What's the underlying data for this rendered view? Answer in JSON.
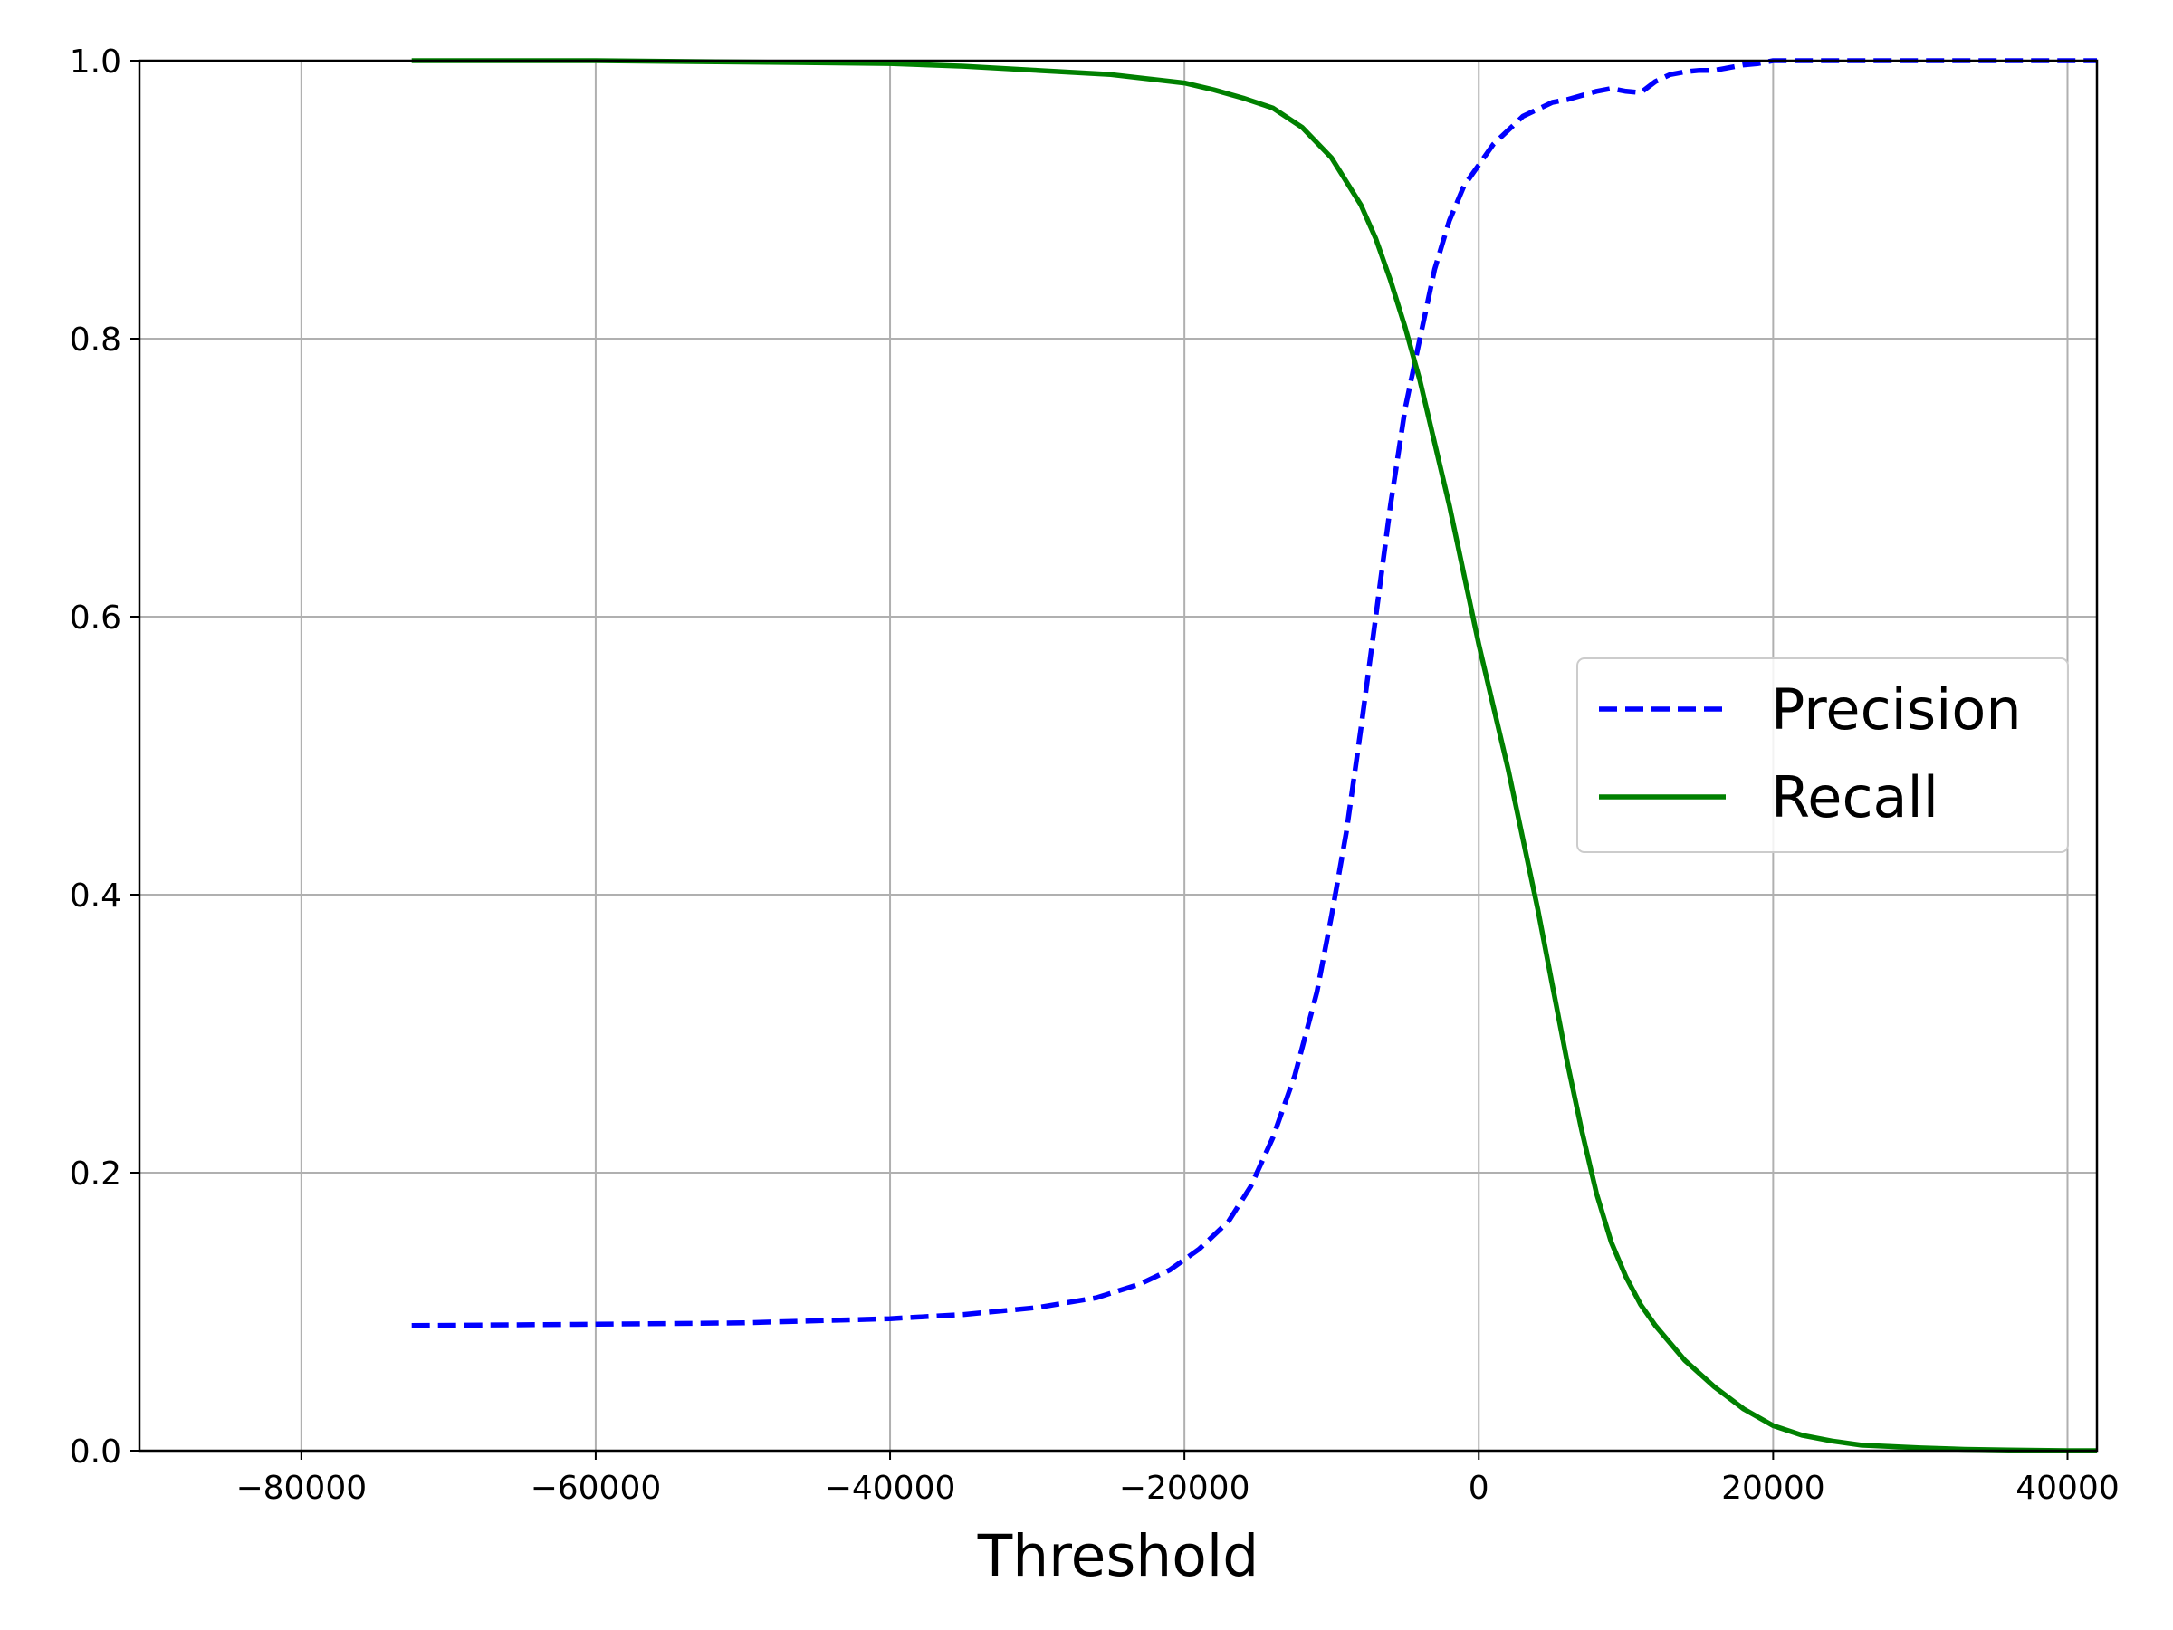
{
  "chart_data": {
    "type": "line",
    "title": "",
    "xlabel": "Threshold",
    "ylabel": "",
    "xlim": [
      -91000,
      42000
    ],
    "ylim": [
      0,
      1
    ],
    "xticks": [
      -80000,
      -60000,
      -40000,
      -20000,
      0,
      20000,
      40000
    ],
    "xtick_labels": [
      "−80000",
      "−60000",
      "−40000",
      "−20000",
      "0",
      "20000",
      "40000"
    ],
    "yticks": [
      0,
      0.2,
      0.4,
      0.6,
      0.8,
      1.0
    ],
    "ytick_labels": [
      "0.0",
      "0.2",
      "0.4",
      "0.6",
      "0.8",
      "1.0"
    ],
    "grid": true,
    "legend_position": "center-right",
    "series": [
      {
        "name": "Precision",
        "style": "dashed",
        "color": "#0000ff",
        "x": [
          -72500,
          -60000,
          -50000,
          -40000,
          -35000,
          -30000,
          -26000,
          -23000,
          -21000,
          -19000,
          -17000,
          -15500,
          -14000,
          -12500,
          -11000,
          -10000,
          -9000,
          -8000,
          -7000,
          -6000,
          -5000,
          -4000,
          -3000,
          -2000,
          -1000,
          0,
          1000,
          2000,
          3000,
          4000,
          5000,
          6000,
          7000,
          8000,
          9000,
          10000,
          11000,
          12000,
          13000,
          14000,
          15000,
          16000,
          17000,
          18000,
          19000,
          20000,
          25000,
          30000,
          35000,
          40000,
          42000
        ],
        "y": [
          0.09,
          0.091,
          0.092,
          0.095,
          0.098,
          0.103,
          0.11,
          0.12,
          0.13,
          0.145,
          0.165,
          0.19,
          0.225,
          0.27,
          0.33,
          0.385,
          0.445,
          0.52,
          0.6,
          0.68,
          0.75,
          0.8,
          0.85,
          0.885,
          0.91,
          0.925,
          0.94,
          0.95,
          0.96,
          0.965,
          0.97,
          0.972,
          0.975,
          0.978,
          0.98,
          0.978,
          0.977,
          0.985,
          0.99,
          0.992,
          0.993,
          0.993,
          0.995,
          0.997,
          0.998,
          1.0,
          1.0,
          1.0,
          1.0,
          1.0,
          1.0
        ]
      },
      {
        "name": "Recall",
        "style": "solid",
        "color": "#008000",
        "x": [
          -72500,
          -60000,
          -50000,
          -40000,
          -35000,
          -30000,
          -25000,
          -20000,
          -18000,
          -16000,
          -14000,
          -12000,
          -10000,
          -8000,
          -7000,
          -6000,
          -5000,
          -4000,
          -3000,
          -2000,
          -1000,
          0,
          1000,
          2000,
          3000,
          4000,
          5000,
          6000,
          7000,
          8000,
          9000,
          10000,
          11000,
          12000,
          14000,
          16000,
          18000,
          20000,
          22000,
          24000,
          26000,
          28000,
          30000,
          33000,
          36000,
          40000,
          42000
        ],
        "y": [
          1.0,
          1.0,
          0.999,
          0.998,
          0.996,
          0.993,
          0.99,
          0.984,
          0.979,
          0.973,
          0.966,
          0.952,
          0.93,
          0.896,
          0.872,
          0.842,
          0.808,
          0.77,
          0.725,
          0.68,
          0.63,
          0.58,
          0.535,
          0.49,
          0.44,
          0.39,
          0.335,
          0.28,
          0.23,
          0.185,
          0.15,
          0.125,
          0.105,
          0.09,
          0.065,
          0.046,
          0.03,
          0.018,
          0.011,
          0.007,
          0.004,
          0.003,
          0.002,
          0.001,
          0.0005,
          0.0,
          0.0
        ]
      }
    ]
  }
}
